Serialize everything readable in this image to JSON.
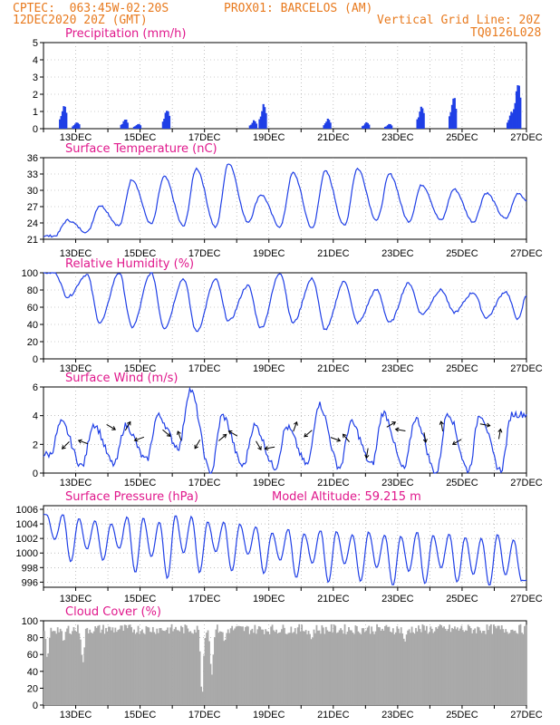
{
  "header": {
    "line1_left": "CPTEC:  063:45W-02:20S",
    "line1_right": "PROX01: BARCELOS (AM)",
    "line2_left": "12DEC2020 20Z (GMT)",
    "line2_right": "Vertical Grid Line: 20Z",
    "line3_right": "TQ0126L028"
  },
  "colors": {
    "header": "#e87a1e",
    "title": "#e0188c",
    "series": "#1f3fe6",
    "cloud": "#a9a9a9",
    "grid": "#999999"
  },
  "chart_data": [
    {
      "type": "bar",
      "title": "Precipitation (mm/h)",
      "ylim": [
        0,
        5
      ],
      "yticks": [
        0,
        1,
        2,
        3,
        4,
        5
      ],
      "xticks": [
        "13DEC",
        "15DEC",
        "17DEC",
        "19DEC",
        "21DEC",
        "23DEC",
        "25DEC",
        "27DEC"
      ],
      "peaks": [
        {
          "day": 12.6,
          "value": 1.5
        },
        {
          "day": 13.0,
          "value": 0.4
        },
        {
          "day": 14.5,
          "value": 0.6
        },
        {
          "day": 14.9,
          "value": 0.3
        },
        {
          "day": 15.8,
          "value": 1.2
        },
        {
          "day": 18.5,
          "value": 0.5
        },
        {
          "day": 18.8,
          "value": 1.5
        },
        {
          "day": 20.8,
          "value": 0.6
        },
        {
          "day": 22.0,
          "value": 0.4
        },
        {
          "day": 22.7,
          "value": 0.3
        },
        {
          "day": 23.7,
          "value": 1.4
        },
        {
          "day": 24.7,
          "value": 2.0
        },
        {
          "day": 26.5,
          "value": 1.0
        },
        {
          "day": 26.7,
          "value": 3.0
        }
      ]
    },
    {
      "type": "line",
      "title": "Surface Temperature (nC)",
      "ylim": [
        21,
        36
      ],
      "yticks": [
        21,
        24,
        27,
        30,
        33,
        36
      ],
      "xticks": [
        "13DEC",
        "15DEC",
        "17DEC",
        "19DEC",
        "21DEC",
        "23DEC",
        "25DEC",
        "27DEC"
      ],
      "daily_max": [
        24.5,
        27.2,
        32,
        32.5,
        34,
        35,
        29.2,
        33.2,
        33.5,
        34,
        33,
        31,
        30.2,
        29.5,
        29.5
      ],
      "daily_min": [
        21.6,
        22.3,
        23.5,
        23.8,
        23.4,
        23.2,
        24.2,
        23.3,
        23.0,
        23.5,
        24.5,
        24.3,
        24.5,
        24.2,
        24.8
      ],
      "end_value": 28.2
    },
    {
      "type": "line",
      "title": "Relative Humidity (%)",
      "ylim": [
        0,
        100
      ],
      "yticks": [
        0,
        20,
        40,
        60,
        80,
        100
      ],
      "xticks": [
        "13DEC",
        "15DEC",
        "17DEC",
        "19DEC",
        "21DEC",
        "23DEC",
        "25DEC",
        "27DEC"
      ],
      "daily_max": [
        100,
        98,
        100,
        100,
        93,
        92,
        85,
        100,
        93,
        90,
        80,
        88,
        80,
        77,
        78
      ],
      "daily_min": [
        72,
        42,
        37,
        36,
        32,
        44,
        36,
        42,
        34,
        42,
        42,
        52,
        54,
        48,
        46
      ],
      "end_value": 74
    },
    {
      "type": "line",
      "title": "Surface Wind (m/s)",
      "ylim": [
        0,
        6
      ],
      "yticks": [
        0,
        2,
        4,
        6
      ],
      "xticks": [
        "13DEC",
        "15DEC",
        "17DEC",
        "19DEC",
        "21DEC",
        "23DEC",
        "25DEC",
        "27DEC"
      ],
      "daily_max": [
        3.5,
        3.4,
        3.3,
        4.0,
        5.8,
        4.0,
        3.3,
        3.2,
        4.8,
        3.5,
        4.2,
        3.8,
        4.2,
        4.1,
        4.1
      ],
      "daily_min": [
        1.3,
        0.5,
        0.6,
        0.9,
        1.8,
        0.0,
        0.5,
        0.4,
        0.6,
        0.4,
        0.6,
        0.3,
        0.0,
        0.2,
        0.2
      ]
    },
    {
      "type": "line",
      "title": "Surface Pressure (hPa)",
      "annotation": "Model Altitude: 59.215 m",
      "ylim": [
        995.3,
        1006.5
      ],
      "yticks": [
        996,
        998,
        1000,
        1002,
        1004,
        1006
      ],
      "xticks": [
        "13DEC",
        "15DEC",
        "17DEC",
        "19DEC",
        "21DEC",
        "23DEC",
        "25DEC",
        "27DEC"
      ],
      "semi_max": [
        1005.3,
        1005.3,
        1004.8,
        1004.5,
        1004.0,
        1005.0,
        1004.8,
        1004.3,
        1005.2,
        1005.0,
        1004.3,
        1004.2,
        1004.0,
        1003.6,
        1002.8,
        1003.3,
        1002.7,
        1003.1,
        1003.0,
        1002.5,
        1002.9,
        1002.5,
        1002.3,
        1002.9,
        1002.4,
        1002.6,
        1002.2,
        1002.0,
        1002.5,
        1001.8
      ],
      "semi_min": [
        1001.8,
        998.8,
        1000.5,
        999.0,
        1000.6,
        997.3,
        999.5,
        996.5,
        1000.0,
        997.3,
        1000.2,
        997.5,
        999.8,
        997.2,
        999.0,
        996.6,
        998.6,
        996.0,
        998.5,
        996.1,
        998.0,
        995.5,
        997.5,
        995.8,
        998.0,
        996.0,
        997.0,
        995.5,
        997.0,
        996.2
      ]
    },
    {
      "type": "area",
      "title": "Cloud Cover (%)",
      "ylim": [
        0,
        100
      ],
      "yticks": [
        0,
        20,
        40,
        60,
        80,
        100
      ],
      "xticks": [
        "13DEC",
        "15DEC",
        "17DEC",
        "19DEC",
        "21DEC",
        "23DEC",
        "25DEC",
        "27DEC"
      ],
      "typical_value": 90,
      "dips": [
        {
          "day": 12.1,
          "value": 55
        },
        {
          "day": 12.6,
          "value": 75
        },
        {
          "day": 13.2,
          "value": 50
        },
        {
          "day": 16.9,
          "value": 10
        },
        {
          "day": 17.2,
          "value": 35
        },
        {
          "day": 17.6,
          "value": 75
        },
        {
          "day": 20.3,
          "value": 78
        },
        {
          "day": 23.2,
          "value": 75
        },
        {
          "day": 26.6,
          "value": 88
        }
      ]
    }
  ]
}
